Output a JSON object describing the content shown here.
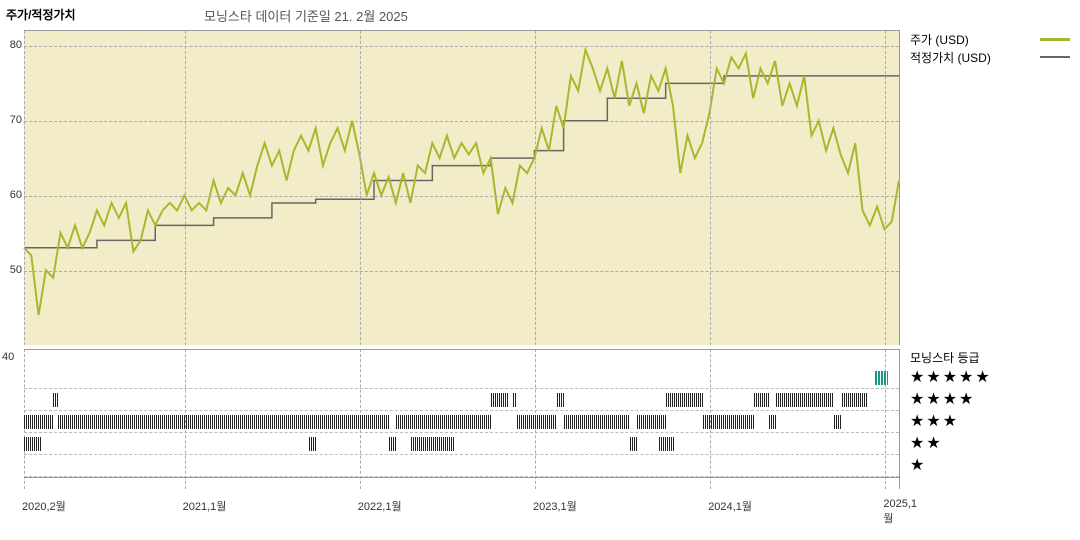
{
  "header": {
    "title": "주가/적정가치",
    "subtitle": "모닝스타 데이터 기준일 21. 2월 2025"
  },
  "chart": {
    "type": "line",
    "background_color": "#f2edc8",
    "grid_color": "#aaaaaa",
    "ylim": [
      40,
      82
    ],
    "yticks": [
      50,
      60,
      70,
      80
    ],
    "ylabel_extra": 40,
    "xdomain": [
      0,
      60
    ],
    "xticks": [
      {
        "pos": 0,
        "label": "2020,2월"
      },
      {
        "pos": 11,
        "label": "2021,1월"
      },
      {
        "pos": 23,
        "label": "2022,1월"
      },
      {
        "pos": 35,
        "label": "2023,1월"
      },
      {
        "pos": 47,
        "label": "2024,1월"
      },
      {
        "pos": 59,
        "label": "2025,1월"
      }
    ],
    "series": {
      "price": {
        "label": "주가 (USD)",
        "color": "#a8b82e",
        "line_width": 2,
        "data": [
          [
            0,
            53
          ],
          [
            0.5,
            52
          ],
          [
            1,
            44
          ],
          [
            1.5,
            50
          ],
          [
            2,
            49
          ],
          [
            2.5,
            55
          ],
          [
            3,
            53
          ],
          [
            3.5,
            56
          ],
          [
            4,
            53
          ],
          [
            4.5,
            55
          ],
          [
            5,
            58
          ],
          [
            5.5,
            56
          ],
          [
            6,
            59
          ],
          [
            6.5,
            57
          ],
          [
            7,
            59
          ],
          [
            7.5,
            52.5
          ],
          [
            8,
            54
          ],
          [
            8.5,
            58
          ],
          [
            9,
            56
          ],
          [
            9.5,
            58
          ],
          [
            10,
            59
          ],
          [
            10.5,
            58
          ],
          [
            11,
            60
          ],
          [
            11.5,
            58
          ],
          [
            12,
            59
          ],
          [
            12.5,
            58
          ],
          [
            13,
            62
          ],
          [
            13.5,
            59
          ],
          [
            14,
            61
          ],
          [
            14.5,
            60
          ],
          [
            15,
            63
          ],
          [
            15.5,
            60
          ],
          [
            16,
            64
          ],
          [
            16.5,
            67
          ],
          [
            17,
            64
          ],
          [
            17.5,
            66
          ],
          [
            18,
            62
          ],
          [
            18.5,
            66
          ],
          [
            19,
            68
          ],
          [
            19.5,
            66
          ],
          [
            20,
            69
          ],
          [
            20.5,
            64
          ],
          [
            21,
            67
          ],
          [
            21.5,
            69
          ],
          [
            22,
            66
          ],
          [
            22.5,
            70
          ],
          [
            23,
            65.5
          ],
          [
            23.5,
            60
          ],
          [
            24,
            63
          ],
          [
            24.5,
            60
          ],
          [
            25,
            62.5
          ],
          [
            25.5,
            59
          ],
          [
            26,
            63
          ],
          [
            26.5,
            59
          ],
          [
            27,
            64
          ],
          [
            27.5,
            63
          ],
          [
            28,
            67
          ],
          [
            28.5,
            65
          ],
          [
            29,
            68
          ],
          [
            29.5,
            65
          ],
          [
            30,
            67
          ],
          [
            30.5,
            65.5
          ],
          [
            31,
            67
          ],
          [
            31.5,
            63
          ],
          [
            32,
            65
          ],
          [
            32.5,
            57.5
          ],
          [
            33,
            61
          ],
          [
            33.5,
            59
          ],
          [
            34,
            64
          ],
          [
            34.5,
            63
          ],
          [
            35,
            65
          ],
          [
            35.5,
            69
          ],
          [
            36,
            66
          ],
          [
            36.5,
            72
          ],
          [
            37,
            69
          ],
          [
            37.5,
            76
          ],
          [
            38,
            74
          ],
          [
            38.5,
            79.5
          ],
          [
            39,
            77
          ],
          [
            39.5,
            74
          ],
          [
            40,
            77
          ],
          [
            40.5,
            73
          ],
          [
            41,
            78
          ],
          [
            41.5,
            72
          ],
          [
            42,
            75
          ],
          [
            42.5,
            71
          ],
          [
            43,
            76
          ],
          [
            43.5,
            74
          ],
          [
            44,
            77
          ],
          [
            44.5,
            72
          ],
          [
            45,
            63
          ],
          [
            45.5,
            68
          ],
          [
            46,
            65
          ],
          [
            46.5,
            67
          ],
          [
            47,
            71
          ],
          [
            47.5,
            77
          ],
          [
            48,
            75
          ],
          [
            48.5,
            78.5
          ],
          [
            49,
            77
          ],
          [
            49.5,
            79
          ],
          [
            50,
            73
          ],
          [
            50.5,
            77
          ],
          [
            51,
            75
          ],
          [
            51.5,
            78
          ],
          [
            52,
            72
          ],
          [
            52.5,
            75
          ],
          [
            53,
            72
          ],
          [
            53.5,
            76
          ],
          [
            54,
            68
          ],
          [
            54.5,
            70
          ],
          [
            55,
            66
          ],
          [
            55.5,
            69
          ],
          [
            56,
            65.5
          ],
          [
            56.5,
            63
          ],
          [
            57,
            67
          ],
          [
            57.5,
            58
          ],
          [
            58,
            56
          ],
          [
            58.5,
            58.5
          ],
          [
            59,
            55.5
          ],
          [
            59.5,
            56.5
          ],
          [
            60,
            62
          ]
        ]
      },
      "fair": {
        "label": "적정가치 (USD)",
        "color": "#666666",
        "line_width": 1.5,
        "data": [
          [
            0,
            53
          ],
          [
            5,
            53
          ],
          [
            5,
            54
          ],
          [
            9,
            54
          ],
          [
            9,
            56
          ],
          [
            13,
            56
          ],
          [
            13,
            57
          ],
          [
            17,
            57
          ],
          [
            17,
            59
          ],
          [
            20,
            59
          ],
          [
            20,
            59.5
          ],
          [
            24,
            59.5
          ],
          [
            24,
            62
          ],
          [
            28,
            62
          ],
          [
            28,
            64
          ],
          [
            32,
            64
          ],
          [
            32,
            65
          ],
          [
            35,
            65
          ],
          [
            35,
            66
          ],
          [
            37,
            66
          ],
          [
            37,
            70
          ],
          [
            40,
            70
          ],
          [
            40,
            73
          ],
          [
            44,
            73
          ],
          [
            44,
            75
          ],
          [
            48,
            75
          ],
          [
            48,
            76
          ],
          [
            60,
            76
          ]
        ]
      }
    }
  },
  "legend": {
    "items": [
      {
        "key": "price",
        "label": "주가 (USD)",
        "color": "#a8b82e",
        "thickness": 3
      },
      {
        "key": "fair",
        "label": "적정가치 (USD)",
        "color": "#666666",
        "thickness": 1.5
      }
    ]
  },
  "rating": {
    "title": "모닝스타 등급",
    "rows": [
      {
        "stars": "★★★★★",
        "segments": [
          [
            58.3,
            59.2
          ]
        ],
        "teal": true
      },
      {
        "stars": "★★★★",
        "segments": [
          [
            2,
            2.3
          ],
          [
            32,
            33.2
          ],
          [
            33.5,
            33.8
          ],
          [
            36.5,
            37
          ],
          [
            44,
            46.5
          ],
          [
            50,
            51
          ],
          [
            51.5,
            55.5
          ],
          [
            56,
            57.8
          ]
        ]
      },
      {
        "stars": "★★★",
        "segments": [
          [
            0,
            2
          ],
          [
            2.3,
            25
          ],
          [
            25.5,
            32
          ],
          [
            33.8,
            36.5
          ],
          [
            37,
            41.5
          ],
          [
            42,
            44
          ],
          [
            46.5,
            50
          ],
          [
            51,
            51.5
          ],
          [
            55.5,
            56
          ]
        ]
      },
      {
        "stars": "★★",
        "segments": [
          [
            0,
            1.2
          ],
          [
            19.5,
            20
          ],
          [
            25,
            25.5
          ],
          [
            26.5,
            29.5
          ],
          [
            41.5,
            42
          ],
          [
            43.5,
            44.5
          ]
        ]
      },
      {
        "stars": "★",
        "segments": []
      }
    ],
    "row_border": "#bbbbbb"
  },
  "colors": {
    "text": "#333333",
    "border": "#999999"
  }
}
